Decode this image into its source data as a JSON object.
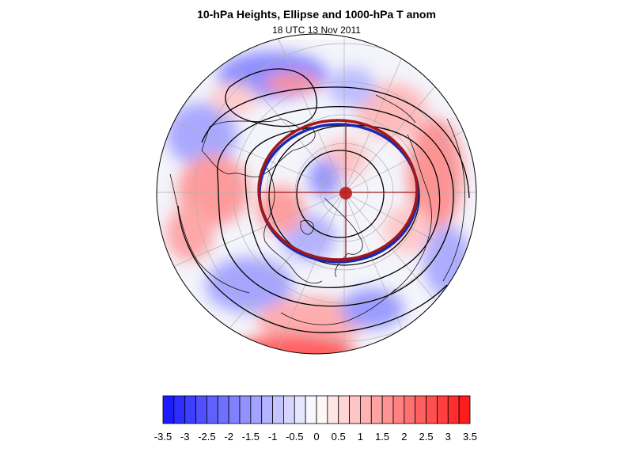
{
  "title": "10-hPa Heights, Ellipse and 1000-hPa T anom",
  "subtitle": "18 UTC 13 Nov 2011",
  "colorbar": {
    "labels": [
      "-3.5",
      "-3",
      "-2.5",
      "-2",
      "-1.5",
      "-1",
      "-0.5",
      "0",
      "0.5",
      "1",
      "1.5",
      "2",
      "2.5",
      "3",
      "3.5"
    ],
    "range": [
      -3.5,
      3.5
    ],
    "bins": 28,
    "colors": {
      "cold": "#1414ff",
      "neutral": "#ffffff",
      "warm": "#ff1414"
    }
  },
  "map": {
    "projection": "north-polar-stereographic",
    "field": "1000-hPa temperature anomaly (shaded)",
    "contours": "10-hPa heights (black)",
    "ellipse_colors": [
      "#a01818",
      "#1828b4"
    ]
  }
}
